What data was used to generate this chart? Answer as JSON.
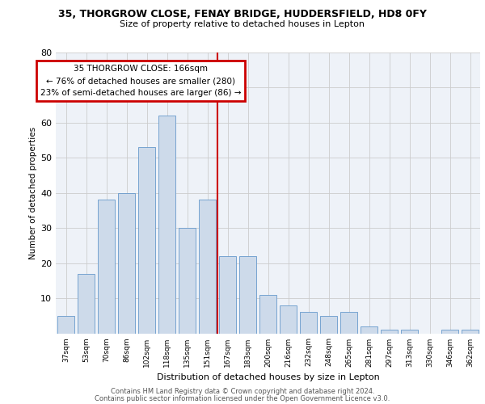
{
  "title_line1": "35, THORGROW CLOSE, FENAY BRIDGE, HUDDERSFIELD, HD8 0FY",
  "title_line2": "Size of property relative to detached houses in Lepton",
  "xlabel": "Distribution of detached houses by size in Lepton",
  "ylabel": "Number of detached properties",
  "categories": [
    "37sqm",
    "53sqm",
    "70sqm",
    "86sqm",
    "102sqm",
    "118sqm",
    "135sqm",
    "151sqm",
    "167sqm",
    "183sqm",
    "200sqm",
    "216sqm",
    "232sqm",
    "248sqm",
    "265sqm",
    "281sqm",
    "297sqm",
    "313sqm",
    "330sqm",
    "346sqm",
    "362sqm"
  ],
  "values": [
    5,
    17,
    38,
    40,
    53,
    62,
    30,
    38,
    22,
    22,
    11,
    8,
    6,
    5,
    6,
    2,
    1,
    1,
    0,
    1,
    1
  ],
  "bar_color": "#cddaea",
  "bar_edge_color": "#6699cc",
  "reference_line_index": 8,
  "annotation_title": "35 THORGROW CLOSE: 166sqm",
  "annotation_line1": "← 76% of detached houses are smaller (280)",
  "annotation_line2": "23% of semi-detached houses are larger (86) →",
  "annotation_box_color": "#ffffff",
  "annotation_box_edge": "#cc0000",
  "ylim": [
    0,
    80
  ],
  "yticks": [
    0,
    10,
    20,
    30,
    40,
    50,
    60,
    70,
    80
  ],
  "grid_color": "#cccccc",
  "background_color": "#eef2f8",
  "footer_line1": "Contains HM Land Registry data © Crown copyright and database right 2024.",
  "footer_line2": "Contains public sector information licensed under the Open Government Licence v3.0."
}
